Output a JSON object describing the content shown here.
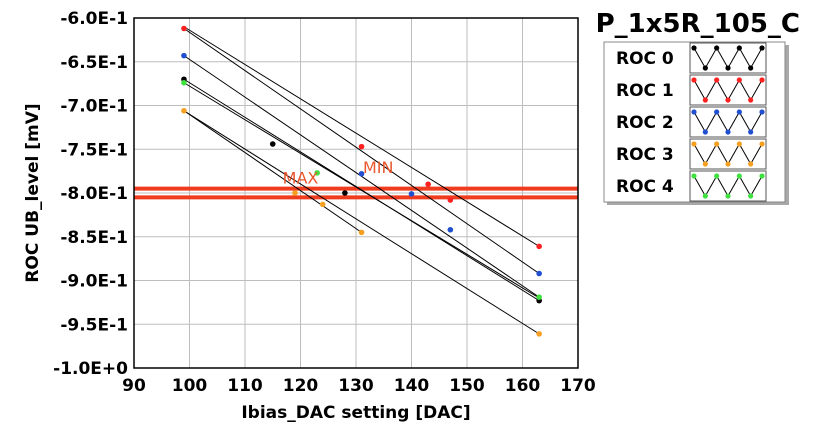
{
  "chart_data": {
    "type": "line",
    "title": "P_1x5R_105_C",
    "xlabel": "Ibias_DAC setting [DAC]",
    "ylabel": "ROC UB_level [mV]",
    "xlim": [
      90,
      170
    ],
    "ylim": [
      -1.0,
      -0.6
    ],
    "x_ticks": [
      "90",
      "100",
      "110",
      "120",
      "130",
      "140",
      "150",
      "160",
      "170"
    ],
    "y_ticks": [
      "-6.0E-1",
      "-6.5E-1",
      "-7.0E-1",
      "-7.5E-1",
      "-8.0E-1",
      "-8.5E-1",
      "-9.0E-1",
      "-9.5E-1",
      "-1.0E+0"
    ],
    "grid": true,
    "legend_position": "right",
    "series": [
      {
        "name": "ROC 0",
        "color": "#000000",
        "points": [
          [
            99,
            -0.67
          ],
          [
            115,
            -0.744
          ],
          [
            128,
            -0.8
          ],
          [
            163,
            -0.923
          ]
        ]
      },
      {
        "name": "ROC 1",
        "color": "#ff2020",
        "points": [
          [
            99,
            -0.612
          ],
          [
            131,
            -0.747
          ],
          [
            143,
            -0.79
          ],
          [
            147,
            -0.808
          ],
          [
            163,
            -0.861
          ]
        ]
      },
      {
        "name": "ROC 2",
        "color": "#2050d0",
        "points": [
          [
            99,
            -0.643
          ],
          [
            131,
            -0.778
          ],
          [
            140,
            -0.801
          ],
          [
            147,
            -0.842
          ],
          [
            163,
            -0.892
          ]
        ]
      },
      {
        "name": "ROC 3",
        "color": "#f5a020",
        "points": [
          [
            99,
            -0.706
          ],
          [
            119,
            -0.8
          ],
          [
            124,
            -0.813
          ],
          [
            131,
            -0.845
          ],
          [
            163,
            -0.961
          ]
        ]
      },
      {
        "name": "ROC 4",
        "color": "#40e040",
        "points": [
          [
            99,
            -0.674
          ],
          [
            123,
            -0.777
          ],
          [
            163,
            -0.919
          ]
        ]
      }
    ],
    "extra_lines": [
      {
        "points": [
          [
            99,
            -0.61
          ],
          [
            163,
            -0.861
          ]
        ]
      },
      {
        "points": [
          [
            99,
            -0.612
          ],
          [
            163,
            -0.892
          ]
        ]
      },
      {
        "points": [
          [
            99,
            -0.643
          ],
          [
            163,
            -0.919
          ]
        ]
      },
      {
        "points": [
          [
            99,
            -0.67
          ],
          [
            163,
            -0.923
          ]
        ]
      },
      {
        "points": [
          [
            99,
            -0.674
          ],
          [
            163,
            -0.92
          ]
        ]
      },
      {
        "points": [
          [
            99,
            -0.706
          ],
          [
            163,
            -0.961
          ]
        ]
      },
      {
        "points": [
          [
            99,
            -0.706
          ],
          [
            131,
            -0.845
          ]
        ]
      }
    ],
    "hlines": [
      {
        "y": -0.795,
        "color": "#f03c1e"
      },
      {
        "y": -0.805,
        "color": "#f03c1e"
      }
    ],
    "annotations": [
      {
        "text": "MAX",
        "x": 120,
        "y": -0.789,
        "color": "#e8572e"
      },
      {
        "text": "MIN",
        "x": 134,
        "y": -0.777,
        "color": "#e8572e"
      }
    ]
  }
}
